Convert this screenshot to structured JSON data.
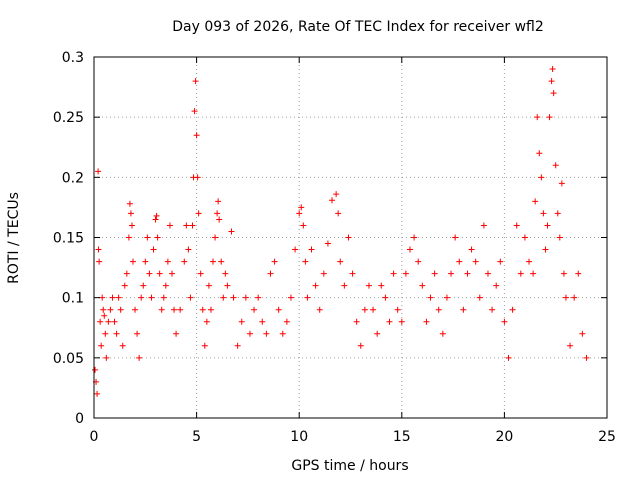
{
  "chart_data": {
    "type": "scatter",
    "title": "Day 093 of 2026, Rate Of TEC Index for receiver wfl2",
    "xlabel": "GPS time / hours",
    "ylabel": "ROTI / TECUs",
    "xlim": [
      0,
      25
    ],
    "ylim": [
      0,
      0.3
    ],
    "xticks": [
      0,
      5,
      10,
      15,
      20,
      25
    ],
    "yticks": [
      0,
      0.05,
      0.1,
      0.15,
      0.2,
      0.25,
      0.3
    ],
    "xtick_labels": [
      "0",
      "5",
      "10",
      "15",
      "20",
      "25"
    ],
    "ytick_labels": [
      "0",
      "0.05",
      "0.1",
      "0.15",
      "0.2",
      "0.25",
      "0.3"
    ],
    "grid": true,
    "marker": "+",
    "color": "#ff0000",
    "series": [
      {
        "points": [
          [
            0.05,
            0.04
          ],
          [
            0.1,
            0.03
          ],
          [
            0.15,
            0.02
          ],
          [
            0.2,
            0.205
          ],
          [
            0.22,
            0.14
          ],
          [
            0.25,
            0.13
          ],
          [
            0.3,
            0.08
          ],
          [
            0.35,
            0.06
          ],
          [
            0.4,
            0.1
          ],
          [
            0.45,
            0.09
          ],
          [
            0.5,
            0.085
          ],
          [
            0.55,
            0.07
          ],
          [
            0.6,
            0.05
          ],
          [
            0.7,
            0.08
          ],
          [
            0.8,
            0.09
          ],
          [
            0.9,
            0.1
          ],
          [
            1.0,
            0.08
          ],
          [
            1.1,
            0.07
          ],
          [
            1.2,
            0.1
          ],
          [
            1.3,
            0.09
          ],
          [
            1.4,
            0.06
          ],
          [
            1.5,
            0.11
          ],
          [
            1.6,
            0.12
          ],
          [
            1.7,
            0.15
          ],
          [
            1.75,
            0.178
          ],
          [
            1.8,
            0.17
          ],
          [
            1.85,
            0.16
          ],
          [
            1.9,
            0.13
          ],
          [
            2.0,
            0.09
          ],
          [
            2.1,
            0.07
          ],
          [
            2.2,
            0.05
          ],
          [
            2.3,
            0.1
          ],
          [
            2.4,
            0.11
          ],
          [
            2.5,
            0.13
          ],
          [
            2.6,
            0.15
          ],
          [
            2.7,
            0.12
          ],
          [
            2.8,
            0.1
          ],
          [
            2.9,
            0.14
          ],
          [
            3.0,
            0.165
          ],
          [
            3.05,
            0.168
          ],
          [
            3.1,
            0.15
          ],
          [
            3.2,
            0.12
          ],
          [
            3.3,
            0.09
          ],
          [
            3.4,
            0.1
          ],
          [
            3.5,
            0.11
          ],
          [
            3.6,
            0.13
          ],
          [
            3.7,
            0.16
          ],
          [
            3.8,
            0.12
          ],
          [
            3.9,
            0.09
          ],
          [
            4.0,
            0.07
          ],
          [
            4.2,
            0.09
          ],
          [
            4.4,
            0.13
          ],
          [
            4.5,
            0.16
          ],
          [
            4.6,
            0.14
          ],
          [
            4.7,
            0.1
          ],
          [
            4.8,
            0.16
          ],
          [
            4.85,
            0.2
          ],
          [
            4.9,
            0.255
          ],
          [
            4.95,
            0.28
          ],
          [
            5.0,
            0.235
          ],
          [
            5.05,
            0.2
          ],
          [
            5.1,
            0.17
          ],
          [
            5.2,
            0.12
          ],
          [
            5.3,
            0.09
          ],
          [
            5.4,
            0.06
          ],
          [
            5.5,
            0.08
          ],
          [
            5.6,
            0.11
          ],
          [
            5.7,
            0.09
          ],
          [
            5.8,
            0.13
          ],
          [
            5.9,
            0.15
          ],
          [
            6.0,
            0.17
          ],
          [
            6.05,
            0.18
          ],
          [
            6.1,
            0.165
          ],
          [
            6.2,
            0.13
          ],
          [
            6.3,
            0.1
          ],
          [
            6.4,
            0.12
          ],
          [
            6.5,
            0.11
          ],
          [
            6.7,
            0.155
          ],
          [
            6.8,
            0.1
          ],
          [
            7.0,
            0.06
          ],
          [
            7.2,
            0.08
          ],
          [
            7.4,
            0.1
          ],
          [
            7.6,
            0.07
          ],
          [
            7.8,
            0.09
          ],
          [
            8.0,
            0.1
          ],
          [
            8.2,
            0.08
          ],
          [
            8.4,
            0.07
          ],
          [
            8.6,
            0.12
          ],
          [
            8.8,
            0.13
          ],
          [
            9.0,
            0.09
          ],
          [
            9.2,
            0.07
          ],
          [
            9.4,
            0.08
          ],
          [
            9.6,
            0.1
          ],
          [
            9.8,
            0.14
          ],
          [
            10.0,
            0.17
          ],
          [
            10.1,
            0.175
          ],
          [
            10.2,
            0.16
          ],
          [
            10.3,
            0.13
          ],
          [
            10.4,
            0.1
          ],
          [
            10.6,
            0.14
          ],
          [
            10.8,
            0.11
          ],
          [
            11.0,
            0.09
          ],
          [
            11.2,
            0.12
          ],
          [
            11.4,
            0.145
          ],
          [
            11.6,
            0.181
          ],
          [
            11.8,
            0.186
          ],
          [
            11.9,
            0.17
          ],
          [
            12.0,
            0.13
          ],
          [
            12.2,
            0.11
          ],
          [
            12.4,
            0.15
          ],
          [
            12.6,
            0.12
          ],
          [
            12.8,
            0.08
          ],
          [
            13.0,
            0.06
          ],
          [
            13.2,
            0.09
          ],
          [
            13.4,
            0.11
          ],
          [
            13.6,
            0.09
          ],
          [
            13.8,
            0.07
          ],
          [
            14.0,
            0.11
          ],
          [
            14.2,
            0.1
          ],
          [
            14.4,
            0.08
          ],
          [
            14.6,
            0.12
          ],
          [
            14.8,
            0.09
          ],
          [
            15.0,
            0.08
          ],
          [
            15.2,
            0.12
          ],
          [
            15.4,
            0.14
          ],
          [
            15.6,
            0.15
          ],
          [
            15.8,
            0.13
          ],
          [
            16.0,
            0.11
          ],
          [
            16.2,
            0.08
          ],
          [
            16.4,
            0.1
          ],
          [
            16.6,
            0.12
          ],
          [
            16.8,
            0.09
          ],
          [
            17.0,
            0.07
          ],
          [
            17.2,
            0.1
          ],
          [
            17.4,
            0.12
          ],
          [
            17.6,
            0.15
          ],
          [
            17.8,
            0.13
          ],
          [
            18.0,
            0.09
          ],
          [
            18.2,
            0.12
          ],
          [
            18.4,
            0.14
          ],
          [
            18.6,
            0.13
          ],
          [
            18.8,
            0.1
          ],
          [
            19.0,
            0.16
          ],
          [
            19.2,
            0.12
          ],
          [
            19.4,
            0.09
          ],
          [
            19.6,
            0.11
          ],
          [
            19.8,
            0.13
          ],
          [
            20.0,
            0.08
          ],
          [
            20.2,
            0.05
          ],
          [
            20.4,
            0.09
          ],
          [
            20.6,
            0.16
          ],
          [
            20.8,
            0.12
          ],
          [
            21.0,
            0.15
          ],
          [
            21.2,
            0.13
          ],
          [
            21.4,
            0.12
          ],
          [
            21.5,
            0.18
          ],
          [
            21.6,
            0.25
          ],
          [
            21.7,
            0.22
          ],
          [
            21.8,
            0.2
          ],
          [
            21.9,
            0.17
          ],
          [
            22.0,
            0.14
          ],
          [
            22.1,
            0.16
          ],
          [
            22.2,
            0.25
          ],
          [
            22.3,
            0.28
          ],
          [
            22.35,
            0.29
          ],
          [
            22.4,
            0.27
          ],
          [
            22.5,
            0.21
          ],
          [
            22.6,
            0.17
          ],
          [
            22.7,
            0.15
          ],
          [
            22.8,
            0.195
          ],
          [
            22.9,
            0.12
          ],
          [
            23.0,
            0.1
          ],
          [
            23.2,
            0.06
          ],
          [
            23.4,
            0.1
          ],
          [
            23.6,
            0.12
          ],
          [
            23.8,
            0.07
          ],
          [
            24.0,
            0.05
          ]
        ]
      }
    ]
  }
}
